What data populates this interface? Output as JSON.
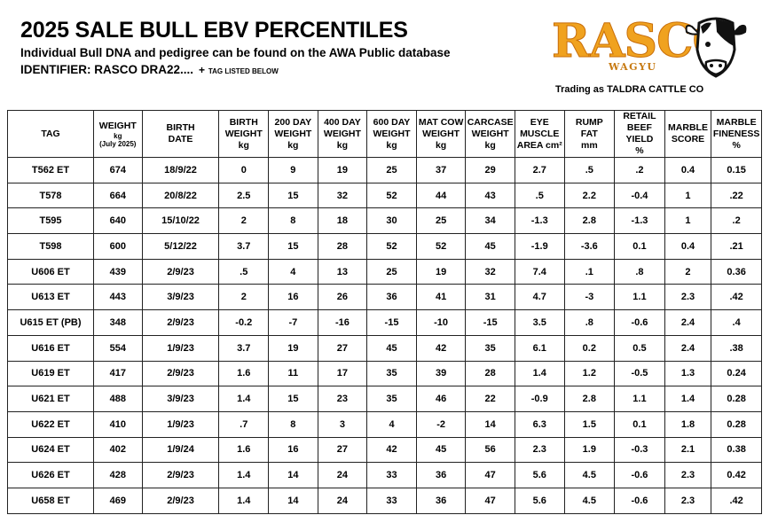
{
  "header": {
    "title": "2025 SALE BULL EBV PERCENTILES",
    "subtitle": "Individual Bull DNA and pedigree can be found on the AWA Public database",
    "identifier": "IDENTIFIER:  RASCO DRA22....",
    "plus": "+",
    "tag_note": "TAG LISTED BELOW"
  },
  "logo": {
    "brand": "RASCO",
    "tagline": "WAGYU",
    "trading": "Trading as TALDRA CATTLE CO",
    "colors": {
      "brand": "#f0a21f",
      "outline": "#c86e0a"
    }
  },
  "table": {
    "columns": [
      {
        "l1": "TAG",
        "l2": "",
        "l3": ""
      },
      {
        "l1": "WEIGHT",
        "l2": "kg",
        "l3": "(July 2025)"
      },
      {
        "l1": "BIRTH",
        "l2": "DATE",
        "l3": ""
      },
      {
        "l1": "BIRTH",
        "l2": "WEIGHT",
        "l3": "kg"
      },
      {
        "l1": "200 DAY",
        "l2": "WEIGHT",
        "l3": "kg"
      },
      {
        "l1": "400 DAY",
        "l2": "WEIGHT",
        "l3": "kg"
      },
      {
        "l1": "600 DAY",
        "l2": "WEIGHT",
        "l3": "kg"
      },
      {
        "l1": "MAT COW",
        "l2": "WEIGHT",
        "l3": "kg"
      },
      {
        "l1": "CARCASE",
        "l2": "WEIGHT",
        "l3": "kg"
      },
      {
        "l1": "EYE",
        "l2": "MUSCLE",
        "l3": "AREA cm²"
      },
      {
        "l1": "RUMP",
        "l2": "FAT",
        "l3": "mm"
      },
      {
        "l1": "RETAIL",
        "l2": "BEEF YIELD",
        "l3": "%"
      },
      {
        "l1": "MARBLE",
        "l2": "SCORE",
        "l3": ""
      },
      {
        "l1": "MARBLE",
        "l2": "FINENESS",
        "l3": "%"
      }
    ],
    "rows": [
      [
        "T562 ET",
        "674",
        "18/9/22",
        "0",
        "9",
        "19",
        "25",
        "37",
        "29",
        "2.7",
        ".5",
        ".2",
        "0.4",
        "0.15"
      ],
      [
        "T578",
        "664",
        "20/8/22",
        "2.5",
        "15",
        "32",
        "52",
        "44",
        "43",
        ".5",
        "2.2",
        "-0.4",
        "1",
        ".22"
      ],
      [
        "T595",
        "640",
        "15/10/22",
        "2",
        "8",
        "18",
        "30",
        "25",
        "34",
        "-1.3",
        "2.8",
        "-1.3",
        "1",
        ".2"
      ],
      [
        "T598",
        "600",
        "5/12/22",
        "3.7",
        "15",
        "28",
        "52",
        "52",
        "45",
        "-1.9",
        "-3.6",
        "0.1",
        "0.4",
        ".21"
      ],
      [
        "U606 ET",
        "439",
        "2/9/23",
        ".5",
        "4",
        "13",
        "25",
        "19",
        "32",
        "7.4",
        ".1",
        ".8",
        "2",
        "0.36"
      ],
      [
        "U613 ET",
        "443",
        "3/9/23",
        "2",
        "16",
        "26",
        "36",
        "41",
        "31",
        "4.7",
        "-3",
        "1.1",
        "2.3",
        ".42"
      ],
      [
        "U615 ET (PB)",
        "348",
        "2/9/23",
        "-0.2",
        "-7",
        "-16",
        "-15",
        "-10",
        "-15",
        "3.5",
        ".8",
        "-0.6",
        "2.4",
        ".4"
      ],
      [
        "U616 ET",
        "554",
        "1/9/23",
        "3.7",
        "19",
        "27",
        "45",
        "42",
        "35",
        "6.1",
        "0.2",
        "0.5",
        "2.4",
        ".38"
      ],
      [
        "U619 ET",
        "417",
        "2/9/23",
        "1.6",
        "11",
        "17",
        "35",
        "39",
        "28",
        "1.4",
        "1.2",
        "-0.5",
        "1.3",
        "0.24"
      ],
      [
        "U621 ET",
        "488",
        "3/9/23",
        "1.4",
        "15",
        "23",
        "35",
        "46",
        "22",
        "-0.9",
        "2.8",
        "1.1",
        "1.4",
        "0.28"
      ],
      [
        "U622 ET",
        "410",
        "1/9/23",
        ".7",
        "8",
        "3",
        "4",
        "-2",
        "14",
        "6.3",
        "1.5",
        "0.1",
        "1.8",
        "0.28"
      ],
      [
        "U624 ET",
        "402",
        "1/9/24",
        "1.6",
        "16",
        "27",
        "42",
        "45",
        "56",
        "2.3",
        "1.9",
        "-0.3",
        "2.1",
        "0.38"
      ],
      [
        "U626 ET",
        "428",
        "2/9/23",
        "1.4",
        "14",
        "24",
        "33",
        "36",
        "47",
        "5.6",
        "4.5",
        "-0.6",
        "2.3",
        "0.42"
      ],
      [
        "U658 ET",
        "469",
        "2/9/23",
        "1.4",
        "14",
        "24",
        "33",
        "36",
        "47",
        "5.6",
        "4.5",
        "-0.6",
        "2.3",
        ".42"
      ]
    ]
  }
}
